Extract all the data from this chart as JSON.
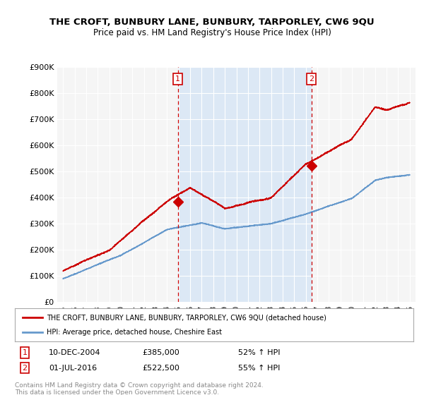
{
  "title": "THE CROFT, BUNBURY LANE, BUNBURY, TARPORLEY, CW6 9QU",
  "subtitle": "Price paid vs. HM Land Registry's House Price Index (HPI)",
  "ylabel_values": [
    "£0",
    "£100K",
    "£200K",
    "£300K",
    "£400K",
    "£500K",
    "£600K",
    "£700K",
    "£800K",
    "£900K"
  ],
  "yticks": [
    0,
    100000,
    200000,
    300000,
    400000,
    500000,
    600000,
    700000,
    800000,
    900000
  ],
  "xlim": [
    1994.5,
    2025.5
  ],
  "ylim": [
    0,
    900000
  ],
  "xtick_years": [
    1995,
    1996,
    1997,
    1998,
    1999,
    2000,
    2001,
    2002,
    2003,
    2004,
    2005,
    2006,
    2007,
    2008,
    2009,
    2010,
    2011,
    2012,
    2013,
    2014,
    2015,
    2016,
    2017,
    2018,
    2019,
    2020,
    2021,
    2022,
    2023,
    2024,
    2025
  ],
  "sale1_x": 2004.94,
  "sale1_y": 385000,
  "sale1_label": "1",
  "sale1_date": "10-DEC-2004",
  "sale1_price": "£385,000",
  "sale1_hpi": "52% ↑ HPI",
  "sale2_x": 2016.5,
  "sale2_y": 522500,
  "sale2_label": "2",
  "sale2_date": "01-JUL-2016",
  "sale2_price": "£522,500",
  "sale2_hpi": "55% ↑ HPI",
  "property_color": "#cc0000",
  "hpi_color": "#6699cc",
  "vline_color": "#cc0000",
  "background_color": "#ffffff",
  "plot_bg_color": "#eef3f8",
  "plot_bg_left_color": "#f5f5f5",
  "grid_color": "#ffffff",
  "highlight_color": "#dce8f5",
  "legend_line1": "THE CROFT, BUNBURY LANE, BUNBURY, TARPORLEY, CW6 9QU (detached house)",
  "legend_line2": "HPI: Average price, detached house, Cheshire East",
  "footer": "Contains HM Land Registry data © Crown copyright and database right 2024.\nThis data is licensed under the Open Government Licence v3.0."
}
